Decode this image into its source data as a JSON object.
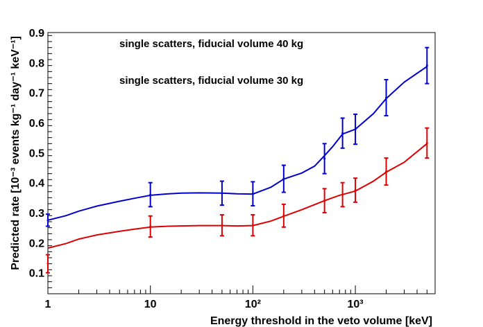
{
  "chart_data": {
    "type": "line",
    "xlabel": "Energy threshold in the veto volume [keV]",
    "ylabel": "Predicted rate [10⁻³ events kg⁻¹ day⁻¹ keV⁻¹]",
    "xscale": "log",
    "xlim": [
      1,
      6000
    ],
    "ylim": [
      0.03,
      0.9
    ],
    "x_tick_labels": [
      "1",
      "10",
      "10²",
      "10³"
    ],
    "y_tick_labels": [
      "0.1",
      "0.2",
      "0.3",
      "0.4",
      "0.5",
      "0.6",
      "0.7",
      "0.8",
      "0.9"
    ],
    "grid": false,
    "legend_position": "top-center",
    "series": [
      {
        "name": "single scatters, fiducial volume 40 kg",
        "color": "#0000cc",
        "curve_x": [
          1,
          1.5,
          2,
          3,
          5,
          7,
          10,
          15,
          20,
          30,
          50,
          70,
          100,
          150,
          200,
          300,
          400,
          500,
          600,
          750,
          1000,
          1500,
          2000,
          3000,
          5000
        ],
        "curve_y": [
          0.275,
          0.29,
          0.305,
          0.322,
          0.338,
          0.348,
          0.358,
          0.363,
          0.365,
          0.366,
          0.365,
          0.363,
          0.362,
          0.385,
          0.412,
          0.432,
          0.455,
          0.49,
          0.52,
          0.562,
          0.578,
          0.63,
          0.68,
          0.735,
          0.787
        ],
        "points_x": [
          1,
          10,
          50,
          100,
          200,
          500,
          750,
          1000,
          2000,
          5000
        ],
        "points_y": [
          0.275,
          0.36,
          0.365,
          0.363,
          0.413,
          0.48,
          0.565,
          0.578,
          0.683,
          0.79
        ],
        "errors": [
          0.02,
          0.04,
          0.04,
          0.04,
          0.045,
          0.05,
          0.05,
          0.05,
          0.06,
          0.06
        ]
      },
      {
        "name": "single scatters, fiducial volume 30 kg",
        "color": "#dd0000",
        "curve_x": [
          1,
          1.5,
          2,
          3,
          5,
          7,
          10,
          15,
          20,
          30,
          50,
          70,
          100,
          150,
          200,
          300,
          500,
          700,
          1000,
          1500,
          2000,
          3000,
          5000
        ],
        "curve_y": [
          0.182,
          0.197,
          0.212,
          0.226,
          0.238,
          0.245,
          0.252,
          0.255,
          0.256,
          0.257,
          0.257,
          0.256,
          0.257,
          0.272,
          0.288,
          0.31,
          0.34,
          0.358,
          0.372,
          0.405,
          0.435,
          0.468,
          0.53
        ],
        "points_x": [
          1,
          10,
          50,
          100,
          200,
          500,
          750,
          1000,
          2000,
          5000
        ],
        "points_y": [
          0.13,
          0.254,
          0.258,
          0.258,
          0.29,
          0.34,
          0.36,
          0.375,
          0.437,
          0.532
        ],
        "errors": [
          0.03,
          0.035,
          0.035,
          0.035,
          0.038,
          0.04,
          0.04,
          0.04,
          0.045,
          0.05
        ]
      }
    ]
  }
}
